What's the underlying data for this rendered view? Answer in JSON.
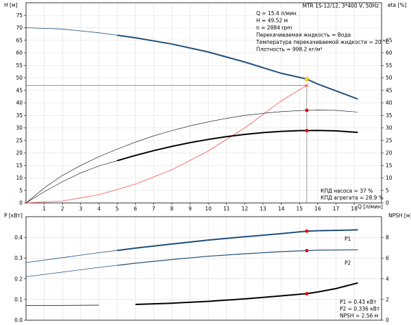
{
  "colors": {
    "head_curve": "#1f4e79",
    "power_curve": "#1f4e79",
    "efficiency_curve": "#000000",
    "system_curve": "#ff5050",
    "point_red": "#e60000",
    "point_yellow": "#ffd21a",
    "grid": "#dddddd"
  },
  "chart_data": [
    {
      "type": "line",
      "title": "MTR 1S-12/12, 3*400 V, 50Hz",
      "xlabel": "Q [л/мин]",
      "ylabel": "H [м]",
      "y2label": "eta [%]",
      "xlim": [
        0,
        19.5
      ],
      "ylim": [
        0,
        80
      ],
      "y2lim": [
        0,
        80
      ],
      "x_ticks": [
        1,
        2,
        3,
        4,
        5,
        6,
        7,
        8,
        9,
        10,
        11,
        12,
        13,
        14,
        15,
        16,
        17,
        18
      ],
      "y_ticks": [
        0,
        5,
        10,
        15,
        20,
        25,
        30,
        35,
        40,
        45,
        50,
        55,
        60,
        65,
        70,
        75
      ],
      "y2_ticks": [
        0,
        5,
        10,
        15,
        20,
        25,
        30,
        35,
        40,
        45,
        50,
        55,
        60,
        65
      ],
      "grid": true,
      "info_lines": [
        "Q = 15.4 л/мин",
        "H = 49.52 м",
        "n = 2884 rpm",
        "Перекачиваемая жидкость = Вода",
        "Температура перекачиваемой жидкости = 20 °C",
        "Плотность = 998.2 кг/м³"
      ],
      "eff_lines": [
        "КПД насоса = 37 %",
        "КПД агрегата = 28.9 %"
      ],
      "series": [
        {
          "role": "head",
          "x": [
            0,
            2,
            4,
            5,
            6,
            8,
            10,
            12,
            14,
            15.4,
            16,
            18.2
          ],
          "values": [
            70,
            69.5,
            68,
            67,
            66,
            63.5,
            60.3,
            56.3,
            51.8,
            49.52,
            47.5,
            41.5
          ]
        },
        {
          "role": "head_thin",
          "x": [
            0,
            5
          ],
          "values": [
            70,
            67
          ]
        },
        {
          "role": "pump_efficiency",
          "x": [
            0,
            1,
            2,
            3,
            4,
            5,
            6,
            7,
            8,
            9,
            10,
            11,
            12,
            13,
            14,
            15,
            15.4,
            16,
            17,
            18.2
          ],
          "values": [
            0,
            6,
            11,
            15,
            18.5,
            21.5,
            24.3,
            26.8,
            28.9,
            30.8,
            32.4,
            33.8,
            35,
            35.8,
            36.5,
            36.9,
            37,
            37.1,
            37,
            36.3
          ]
        },
        {
          "role": "unit_efficiency",
          "x": [
            0,
            1,
            2,
            3,
            4,
            5,
            6,
            7,
            8,
            9,
            10,
            11,
            12,
            13,
            14,
            15,
            15.4,
            16,
            17,
            18.2
          ],
          "values": [
            0,
            4.5,
            8.5,
            12,
            14.8,
            16.9,
            19,
            20.9,
            22.6,
            24.1,
            25.4,
            26.5,
            27.4,
            28.1,
            28.6,
            28.9,
            28.9,
            29,
            28.8,
            28.2
          ]
        },
        {
          "role": "system_curve",
          "x": [
            0,
            2,
            4,
            6,
            8,
            10,
            12,
            14,
            15.4
          ],
          "values": [
            0,
            0.8,
            3.3,
            7.5,
            13.3,
            20.8,
            30,
            40.8,
            47
          ]
        }
      ],
      "operating_point": {
        "x": 15.4,
        "h": 49.52,
        "eta_pump": 37,
        "eta_unit": 28.9,
        "h_reference": 47
      }
    },
    {
      "type": "line",
      "xlabel": "",
      "ylabel": "P [кВт]",
      "y2label": "NPSH [м]",
      "xlim": [
        0,
        19.5
      ],
      "ylim": [
        0,
        0.5
      ],
      "y2lim": [
        0,
        10
      ],
      "y_ticks": [
        0,
        0.1,
        0.2,
        0.3,
        0.4
      ],
      "y_tick_labels": [
        "0.0",
        "0.1",
        "0.2",
        "0.3",
        "0.4"
      ],
      "y2_ticks": [
        0,
        2,
        4,
        6,
        8
      ],
      "grid": true,
      "legend_labels": {
        "p1": "P1",
        "p2": "P2"
      },
      "readouts": [
        "P1 = 0.43 кВт",
        "P2 = 0.336 кВт",
        "NPSH = 2.56 м"
      ],
      "series": [
        {
          "name": "P1",
          "role": "p1",
          "x": [
            0,
            2,
            4,
            5,
            6,
            8,
            10,
            12,
            14,
            15.4,
            16,
            18.2
          ],
          "values": [
            0.278,
            0.302,
            0.326,
            0.337,
            0.348,
            0.368,
            0.387,
            0.403,
            0.418,
            0.43,
            0.432,
            0.436
          ]
        },
        {
          "name": "P2",
          "role": "p2",
          "x": [
            0,
            2,
            4,
            5,
            6,
            8,
            10,
            12,
            14,
            15.4,
            16,
            18.2
          ],
          "values": [
            0.21,
            0.232,
            0.255,
            0.265,
            0.275,
            0.293,
            0.309,
            0.321,
            0.331,
            0.336,
            0.338,
            0.34
          ]
        },
        {
          "name": "NPSH",
          "role": "npsh",
          "x": [
            0,
            2,
            4,
            6,
            8,
            10,
            12,
            14,
            15.4,
            16,
            17,
            18.2
          ],
          "values": [
            1.42,
            1.43,
            1.46,
            1.52,
            1.64,
            1.82,
            2.06,
            2.35,
            2.56,
            2.72,
            3.05,
            3.6
          ]
        }
      ],
      "operating_point": {
        "x": 15.4,
        "p1": 0.43,
        "p2": 0.336,
        "npsh": 2.56
      }
    }
  ]
}
